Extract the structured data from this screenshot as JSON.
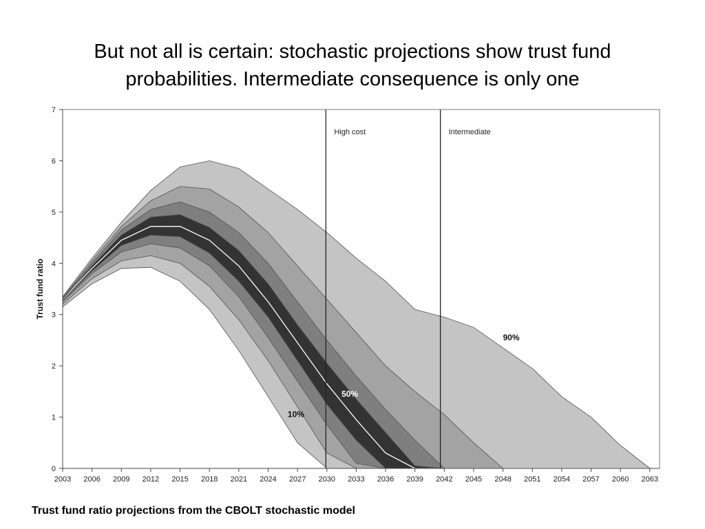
{
  "slide": {
    "title_line1": "But not all is certain: stochastic projections show trust fund",
    "title_line2": "probabilities.  Intermediate consequence is only one",
    "caption": "Trust fund ratio projections from the CBOLT stochastic model"
  },
  "colors": {
    "band_outer": "#c4c4c4",
    "band_mid": "#a3a3a3",
    "band_inner": "#7f7f7f",
    "band_core": "#333333",
    "median_line": "#ffffff",
    "outline": "#505050"
  },
  "chart_data": {
    "type": "area",
    "title": "",
    "xlabel": "",
    "ylabel": "Trust fund ratio",
    "xlim": [
      2003,
      2065
    ],
    "ylim": [
      0,
      7
    ],
    "yticks": [
      0,
      1,
      2,
      3,
      4,
      5,
      6,
      7
    ],
    "xticks": [
      2003,
      2006,
      2009,
      2012,
      2015,
      2018,
      2021,
      2024,
      2027,
      2030,
      2033,
      2036,
      2039,
      2042,
      2045,
      2048,
      2051,
      2054,
      2057,
      2060,
      2063
    ],
    "grid": false,
    "x": [
      2003,
      2006,
      2009,
      2012,
      2015,
      2018,
      2021,
      2024,
      2027,
      2030,
      2033,
      2036,
      2039,
      2042,
      2045,
      2048,
      2051,
      2054,
      2057,
      2060,
      2063
    ],
    "percentile_curves": [
      {
        "name": "10%",
        "values": [
          3.15,
          3.6,
          3.9,
          3.92,
          3.65,
          3.1,
          2.3,
          1.4,
          0.5,
          0.0,
          0.0,
          0.0,
          0.0,
          0.0,
          0.0,
          0.0,
          0.0,
          0.0,
          0.0,
          0.0,
          0.0
        ]
      },
      {
        "values": [
          3.2,
          3.7,
          4.05,
          4.15,
          4.0,
          3.55,
          2.9,
          2.1,
          1.2,
          0.3,
          0.0,
          0.0,
          0.0,
          0.0,
          0.0,
          0.0,
          0.0,
          0.0,
          0.0,
          0.0,
          0.0
        ]
      },
      {
        "values": [
          3.25,
          3.8,
          4.22,
          4.38,
          4.3,
          3.95,
          3.35,
          2.55,
          1.7,
          0.85,
          0.1,
          0.0,
          0.0,
          0.0,
          0.0,
          0.0,
          0.0,
          0.0,
          0.0,
          0.0,
          0.0
        ]
      },
      {
        "values": [
          3.28,
          3.85,
          4.35,
          4.55,
          4.52,
          4.2,
          3.65,
          2.95,
          2.1,
          1.25,
          0.55,
          0.0,
          0.0,
          0.0,
          0.0,
          0.0,
          0.0,
          0.0,
          0.0,
          0.0,
          0.0
        ]
      },
      {
        "name": "50%",
        "values": [
          3.3,
          3.9,
          4.45,
          4.72,
          4.72,
          4.45,
          3.95,
          3.25,
          2.45,
          1.65,
          0.95,
          0.3,
          0.0,
          0.0,
          0.0,
          0.0,
          0.0,
          0.0,
          0.0,
          0.0,
          0.0
        ]
      },
      {
        "values": [
          3.3,
          3.95,
          4.55,
          4.9,
          4.95,
          4.7,
          4.25,
          3.6,
          2.8,
          2.05,
          1.35,
          0.7,
          0.05,
          0.0,
          0.0,
          0.0,
          0.0,
          0.0,
          0.0,
          0.0,
          0.0
        ]
      },
      {
        "values": [
          3.32,
          4.0,
          4.65,
          5.05,
          5.2,
          5.0,
          4.6,
          4.0,
          3.25,
          2.5,
          1.8,
          1.15,
          0.55,
          0.0,
          0.0,
          0.0,
          0.0,
          0.0,
          0.0,
          0.0,
          0.0
        ]
      },
      {
        "values": [
          3.33,
          4.05,
          4.72,
          5.22,
          5.5,
          5.45,
          5.1,
          4.6,
          3.95,
          3.3,
          2.65,
          2.0,
          1.5,
          1.05,
          0.5,
          0.0,
          0.0,
          0.0,
          0.0,
          0.0,
          0.0
        ]
      },
      {
        "name": "90%",
        "values": [
          3.35,
          4.1,
          4.8,
          5.42,
          5.88,
          6.0,
          5.85,
          5.45,
          5.05,
          4.6,
          4.1,
          3.65,
          3.1,
          2.95,
          2.75,
          2.35,
          1.95,
          1.4,
          1.0,
          0.45,
          0.0
        ]
      }
    ],
    "reference_lines": [
      {
        "label": "High cost",
        "x": 2029.9
      },
      {
        "label": "Intermediate",
        "x": 2041.6
      }
    ],
    "band_labels": [
      {
        "text": "10%",
        "x": 2026.0,
        "y": 1.0
      },
      {
        "text": "50%",
        "x": 2031.5,
        "y": 1.4
      },
      {
        "text": "90%",
        "x": 2048.0,
        "y": 2.5
      }
    ]
  }
}
